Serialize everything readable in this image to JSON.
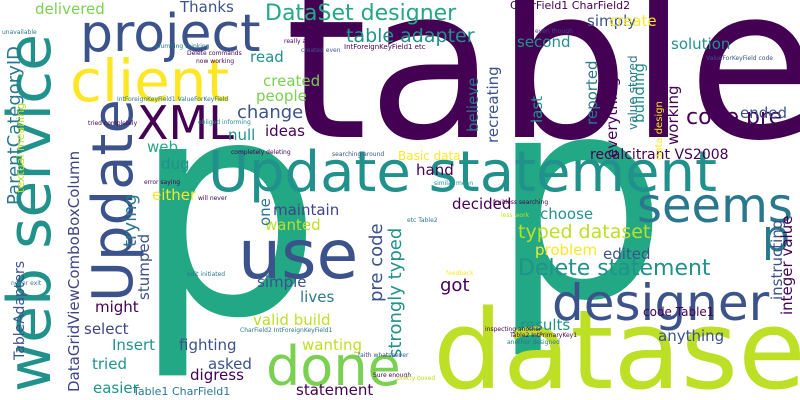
{
  "colors": {
    "background": "#ffffff",
    "palette": [
      "#440154",
      "#3b528b",
      "#21918c",
      "#5ec962",
      "#fde725",
      "#2a788e",
      "#22a884",
      "#7ad151",
      "#bddf26",
      "#414487"
    ]
  },
  "words": {
    "table": "table",
    "p_left": "p",
    "p_right": "p",
    "dataset": "dataset",
    "update_statement": "Update statement",
    "web_service": "web service",
    "project": "project",
    "client": "client",
    "designer": "designer",
    "use": "use",
    "update": "Update",
    "seems": "seems",
    "done": "done",
    "xml": "XML",
    "p_small": "p",
    "dataset_designer": "DataSet designer",
    "delete_statement": "Delete statement",
    "typed_dataset": "typed dataset",
    "table_adapter": "table adapter",
    "code_pre": "code pre",
    "pre_code": "pre code",
    "strongly_typed": "strongly typed",
    "parent_category_id": "ParentCategoryID",
    "datagridview": "DataGridViewComboBoxColumn",
    "table_adapters": "TableAdapters",
    "delivered": "delivered",
    "thanks": "Thanks",
    "charfield": "CharField1 CharField2",
    "int_foreign": "IntForeignKeyField1 etc",
    "simply": "simply",
    "create": "create",
    "second": "second",
    "solution": "solution",
    "read": "read",
    "created": "created",
    "people": "people",
    "change": "change",
    "null": "null",
    "ideas": "ideas",
    "web": "web",
    "dug": "dug",
    "either": "either",
    "wanted": "wanted",
    "maintain": "maintain",
    "one": "one",
    "trying": "trying",
    "stumped": "stumped",
    "simple": "simple",
    "lives": "lives",
    "valid_build": "valid build",
    "might": "might",
    "select": "select",
    "insert": "Insert",
    "fighting": "fighting",
    "wanting": "wanting",
    "tried": "tried",
    "asked": "asked",
    "digress": "digress",
    "easier": "easier",
    "table1_charfield1": "Table1 CharField1",
    "statement": "statement",
    "got": "got",
    "results": "results",
    "anything": "anything",
    "problem": "problem",
    "edited": "edited",
    "choose": "choose",
    "decided": "decided",
    "code_table1": "code Table1",
    "recalcitrant": "recalcitrant VS2008",
    "basic_data": "Basic data",
    "hand": "hand",
    "believe": "believe",
    "recreating": "recreating",
    "last": "last",
    "reported": "reported",
    "everything": "everything",
    "building": "building",
    "value_stored": "value stored",
    "data_design": "data design",
    "working": "working",
    "ended": "ended",
    "instructing": "instructing",
    "integer_value": "integer value",
    "textual_meaning": "textual meaning",
    "small_1": "plumbing thinking",
    "small_2": "Delete commands",
    "small_3": "really affect",
    "small_4": "even though",
    "small_5": "ValueForKeyField code",
    "small_6": "IntForeignKeyField1 ValueForKeyField",
    "small_7": "tried completely",
    "small_8": "obliged informing",
    "small_9": "completely deleting",
    "small_10": "searching around",
    "small_11": "error saying",
    "small_12": "similar mean",
    "small_13": "fruitless searching",
    "small_14": "etc Table2",
    "small_15": "edit initiated",
    "small_16": "CharField2 IntForeignKeyField1",
    "small_17": "Table2 IntPrimaryKey1",
    "small_18": "inspecting another",
    "small_19": "another designed",
    "small_20": "faith whatsoever",
    "small_21": "Sure enough",
    "small_22": "pretty boxed",
    "small_23": "unavailable",
    "small_24": "created even",
    "small_25": "now working",
    "small_26": "will never",
    "small_27": "feedback",
    "small_28": "less work",
    "small_29": "never exit"
  }
}
